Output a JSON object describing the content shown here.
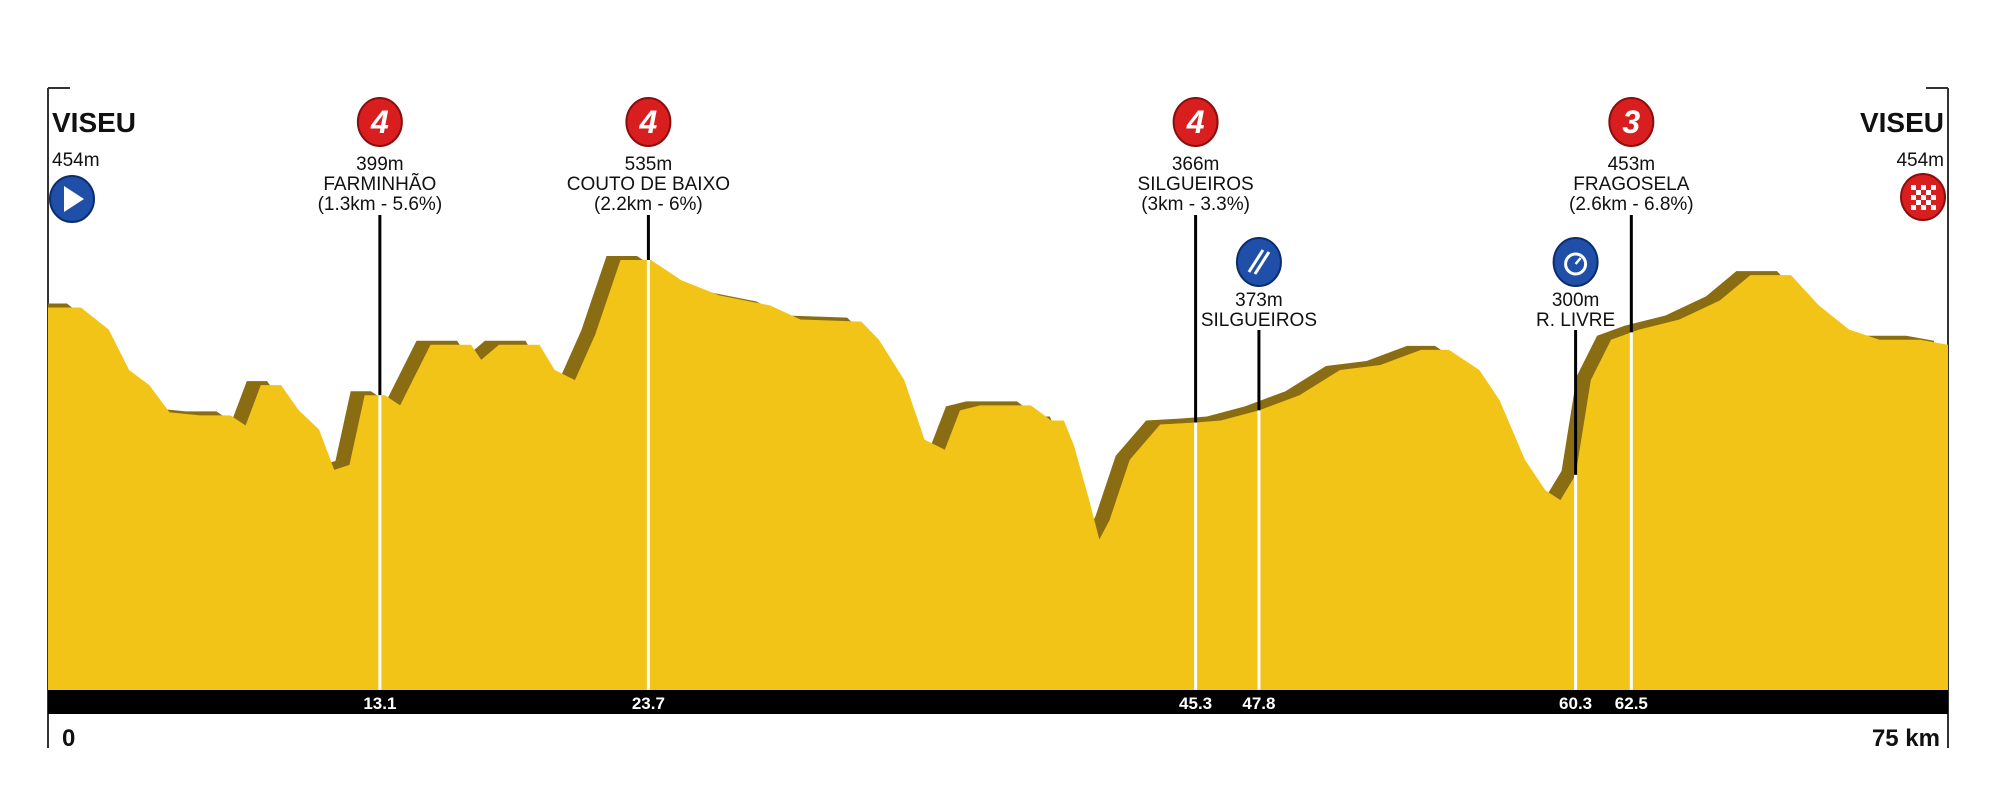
{
  "chart_data": {
    "type": "area",
    "xlabel": "",
    "ylabel": "",
    "xlim": [
      0,
      75
    ],
    "x_unit": "km",
    "x_axis_labels": {
      "start": "0",
      "end": "75 km"
    },
    "colors": {
      "profile": "#f2c418",
      "profile_shade": "#8a6d12",
      "bar": "#000000",
      "climb_badge": "#d81e1e",
      "point_badge": "#1f4fa8"
    },
    "start": {
      "name": "VISEU",
      "elevation": "454m",
      "icon": "start-arrow-icon"
    },
    "finish": {
      "name": "VISEU",
      "elevation": "454m",
      "icon": "checkered-flag-icon"
    },
    "points": [
      {
        "km": 13.1,
        "km_label": "13.1",
        "elevation": "399m",
        "name": "FARMINHÃO",
        "detail": "(1.3km - 5.6%)",
        "type": "climb",
        "category": "4"
      },
      {
        "km": 23.7,
        "km_label": "23.7",
        "elevation": "535m",
        "name": "COUTO DE BAIXO",
        "detail": "(2.2km - 6%)",
        "type": "climb",
        "category": "4"
      },
      {
        "km": 45.3,
        "km_label": "45.3",
        "elevation": "366m",
        "name": "SILGUEIROS",
        "detail": "(3km - 3.3%)",
        "type": "climb",
        "category": "4"
      },
      {
        "km": 47.8,
        "km_label": "47.8",
        "elevation": "373m",
        "name": "SILGUEIROS",
        "detail": "",
        "type": "sprint",
        "icon": "sprint-icon"
      },
      {
        "km": 60.3,
        "km_label": "60.3",
        "elevation": "300m",
        "name": "R. LIVRE",
        "detail": "",
        "type": "bonus",
        "icon": "stopwatch-icon"
      },
      {
        "km": 62.5,
        "km_label": "62.5",
        "elevation": "453m",
        "name": "FRAGOSELA",
        "detail": "(2.6km - 6.8%)",
        "type": "climb",
        "category": "3"
      }
    ],
    "profile": [
      [
        0,
        486
      ],
      [
        1.3,
        486
      ],
      [
        2.4,
        464
      ],
      [
        3.2,
        424
      ],
      [
        4.0,
        409
      ],
      [
        4.8,
        382
      ],
      [
        6.0,
        379
      ],
      [
        7.2,
        379
      ],
      [
        7.8,
        369
      ],
      [
        8.4,
        409
      ],
      [
        9.2,
        409
      ],
      [
        9.9,
        384
      ],
      [
        10.7,
        365
      ],
      [
        11.3,
        325
      ],
      [
        11.9,
        330
      ],
      [
        12.5,
        399
      ],
      [
        13.3,
        399
      ],
      [
        13.9,
        389
      ],
      [
        15.1,
        449
      ],
      [
        16.7,
        449
      ],
      [
        17.1,
        434
      ],
      [
        17.8,
        449
      ],
      [
        19.4,
        449
      ],
      [
        20.0,
        424
      ],
      [
        20.8,
        414
      ],
      [
        21.6,
        459
      ],
      [
        22.6,
        533
      ],
      [
        23.8,
        533
      ],
      [
        25.0,
        513
      ],
      [
        26.5,
        498
      ],
      [
        28.5,
        488
      ],
      [
        29.7,
        474
      ],
      [
        32.1,
        472
      ],
      [
        32.8,
        454
      ],
      [
        33.8,
        414
      ],
      [
        34.6,
        355
      ],
      [
        35.4,
        345
      ],
      [
        36.0,
        384
      ],
      [
        36.8,
        389
      ],
      [
        38.8,
        389
      ],
      [
        39.6,
        374
      ],
      [
        40.1,
        374
      ],
      [
        40.5,
        349
      ],
      [
        41.1,
        295
      ],
      [
        41.5,
        256
      ],
      [
        41.9,
        275
      ],
      [
        42.7,
        335
      ],
      [
        43.9,
        370
      ],
      [
        45.3,
        372
      ],
      [
        46.3,
        374
      ],
      [
        47.8,
        384
      ],
      [
        49.4,
        399
      ],
      [
        51.0,
        424
      ],
      [
        52.6,
        429
      ],
      [
        54.2,
        444
      ],
      [
        55.3,
        444
      ],
      [
        56.5,
        424
      ],
      [
        57.3,
        394
      ],
      [
        58.3,
        335
      ],
      [
        59.1,
        305
      ],
      [
        59.7,
        295
      ],
      [
        60.3,
        320
      ],
      [
        60.9,
        414
      ],
      [
        61.7,
        454
      ],
      [
        62.8,
        464
      ],
      [
        64.4,
        474
      ],
      [
        66.0,
        493
      ],
      [
        67.2,
        518
      ],
      [
        68.8,
        518
      ],
      [
        69.9,
        488
      ],
      [
        71.1,
        464
      ],
      [
        72.3,
        454
      ],
      [
        73.9,
        454
      ],
      [
        75,
        449
      ]
    ]
  }
}
